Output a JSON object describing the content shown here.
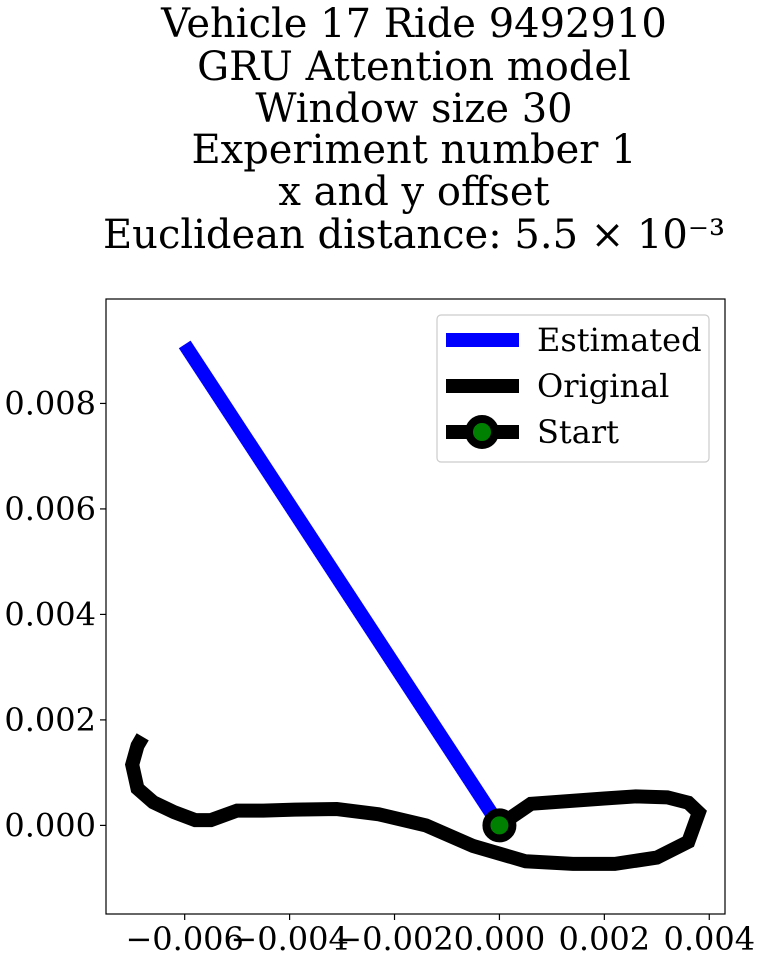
{
  "chart_data": {
    "type": "line",
    "title_lines": [
      "Vehicle 17 Ride 9492910",
      "GRU Attention model",
      "Window size 30",
      "Experiment number 1",
      "x and y offset",
      "Euclidean distance: 5.5 × 10⁻³"
    ],
    "xlabel": "",
    "ylabel": "",
    "xlim": [
      -0.0075,
      0.0043
    ],
    "ylim": [
      -0.00168,
      0.00998
    ],
    "xticks": [
      -0.006,
      -0.004,
      -0.002,
      0.0,
      0.002,
      0.004
    ],
    "xtick_labels": [
      "−0.006",
      "−0.004",
      "−0.002",
      "0.000",
      "0.002",
      "0.004"
    ],
    "yticks": [
      0.0,
      0.002,
      0.004,
      0.006,
      0.008
    ],
    "ytick_labels": [
      "0.000",
      "0.002",
      "0.004",
      "0.006",
      "0.008"
    ],
    "grid": false,
    "legend_position": "top-right",
    "series": [
      {
        "name": "Estimated",
        "color": "#0000ff",
        "x": [
          -0.006,
          0.0
        ],
        "y": [
          0.00912,
          0.0
        ]
      },
      {
        "name": "Original",
        "color": "#000000",
        "x": [
          0.0,
          0.0006,
          0.002,
          0.0026,
          0.0032,
          0.0036,
          0.0038,
          0.0036,
          0.003,
          0.0022,
          0.0014,
          0.0005,
          -0.0005,
          -0.0014,
          -0.0023,
          -0.0031,
          -0.0039,
          -0.0045,
          -0.005,
          -0.0055,
          -0.0058,
          -0.0062,
          -0.0066,
          -0.0069,
          -0.007,
          -0.0069,
          -0.0068
        ],
        "y": [
          0.0,
          0.00041,
          0.00051,
          0.00055,
          0.00053,
          0.00043,
          0.00024,
          -0.00031,
          -0.00061,
          -0.00073,
          -0.00073,
          -0.00068,
          -0.00039,
          0.0,
          0.00021,
          0.00031,
          0.0003,
          0.00028,
          0.00028,
          0.0001,
          0.0001,
          0.00025,
          0.00044,
          0.0007,
          0.00115,
          0.00151,
          0.00168
        ]
      }
    ],
    "start_point": {
      "name": "Start",
      "x": 0.0,
      "y": 0.0,
      "marker_color": "#008000",
      "edge_color": "#000000"
    }
  }
}
